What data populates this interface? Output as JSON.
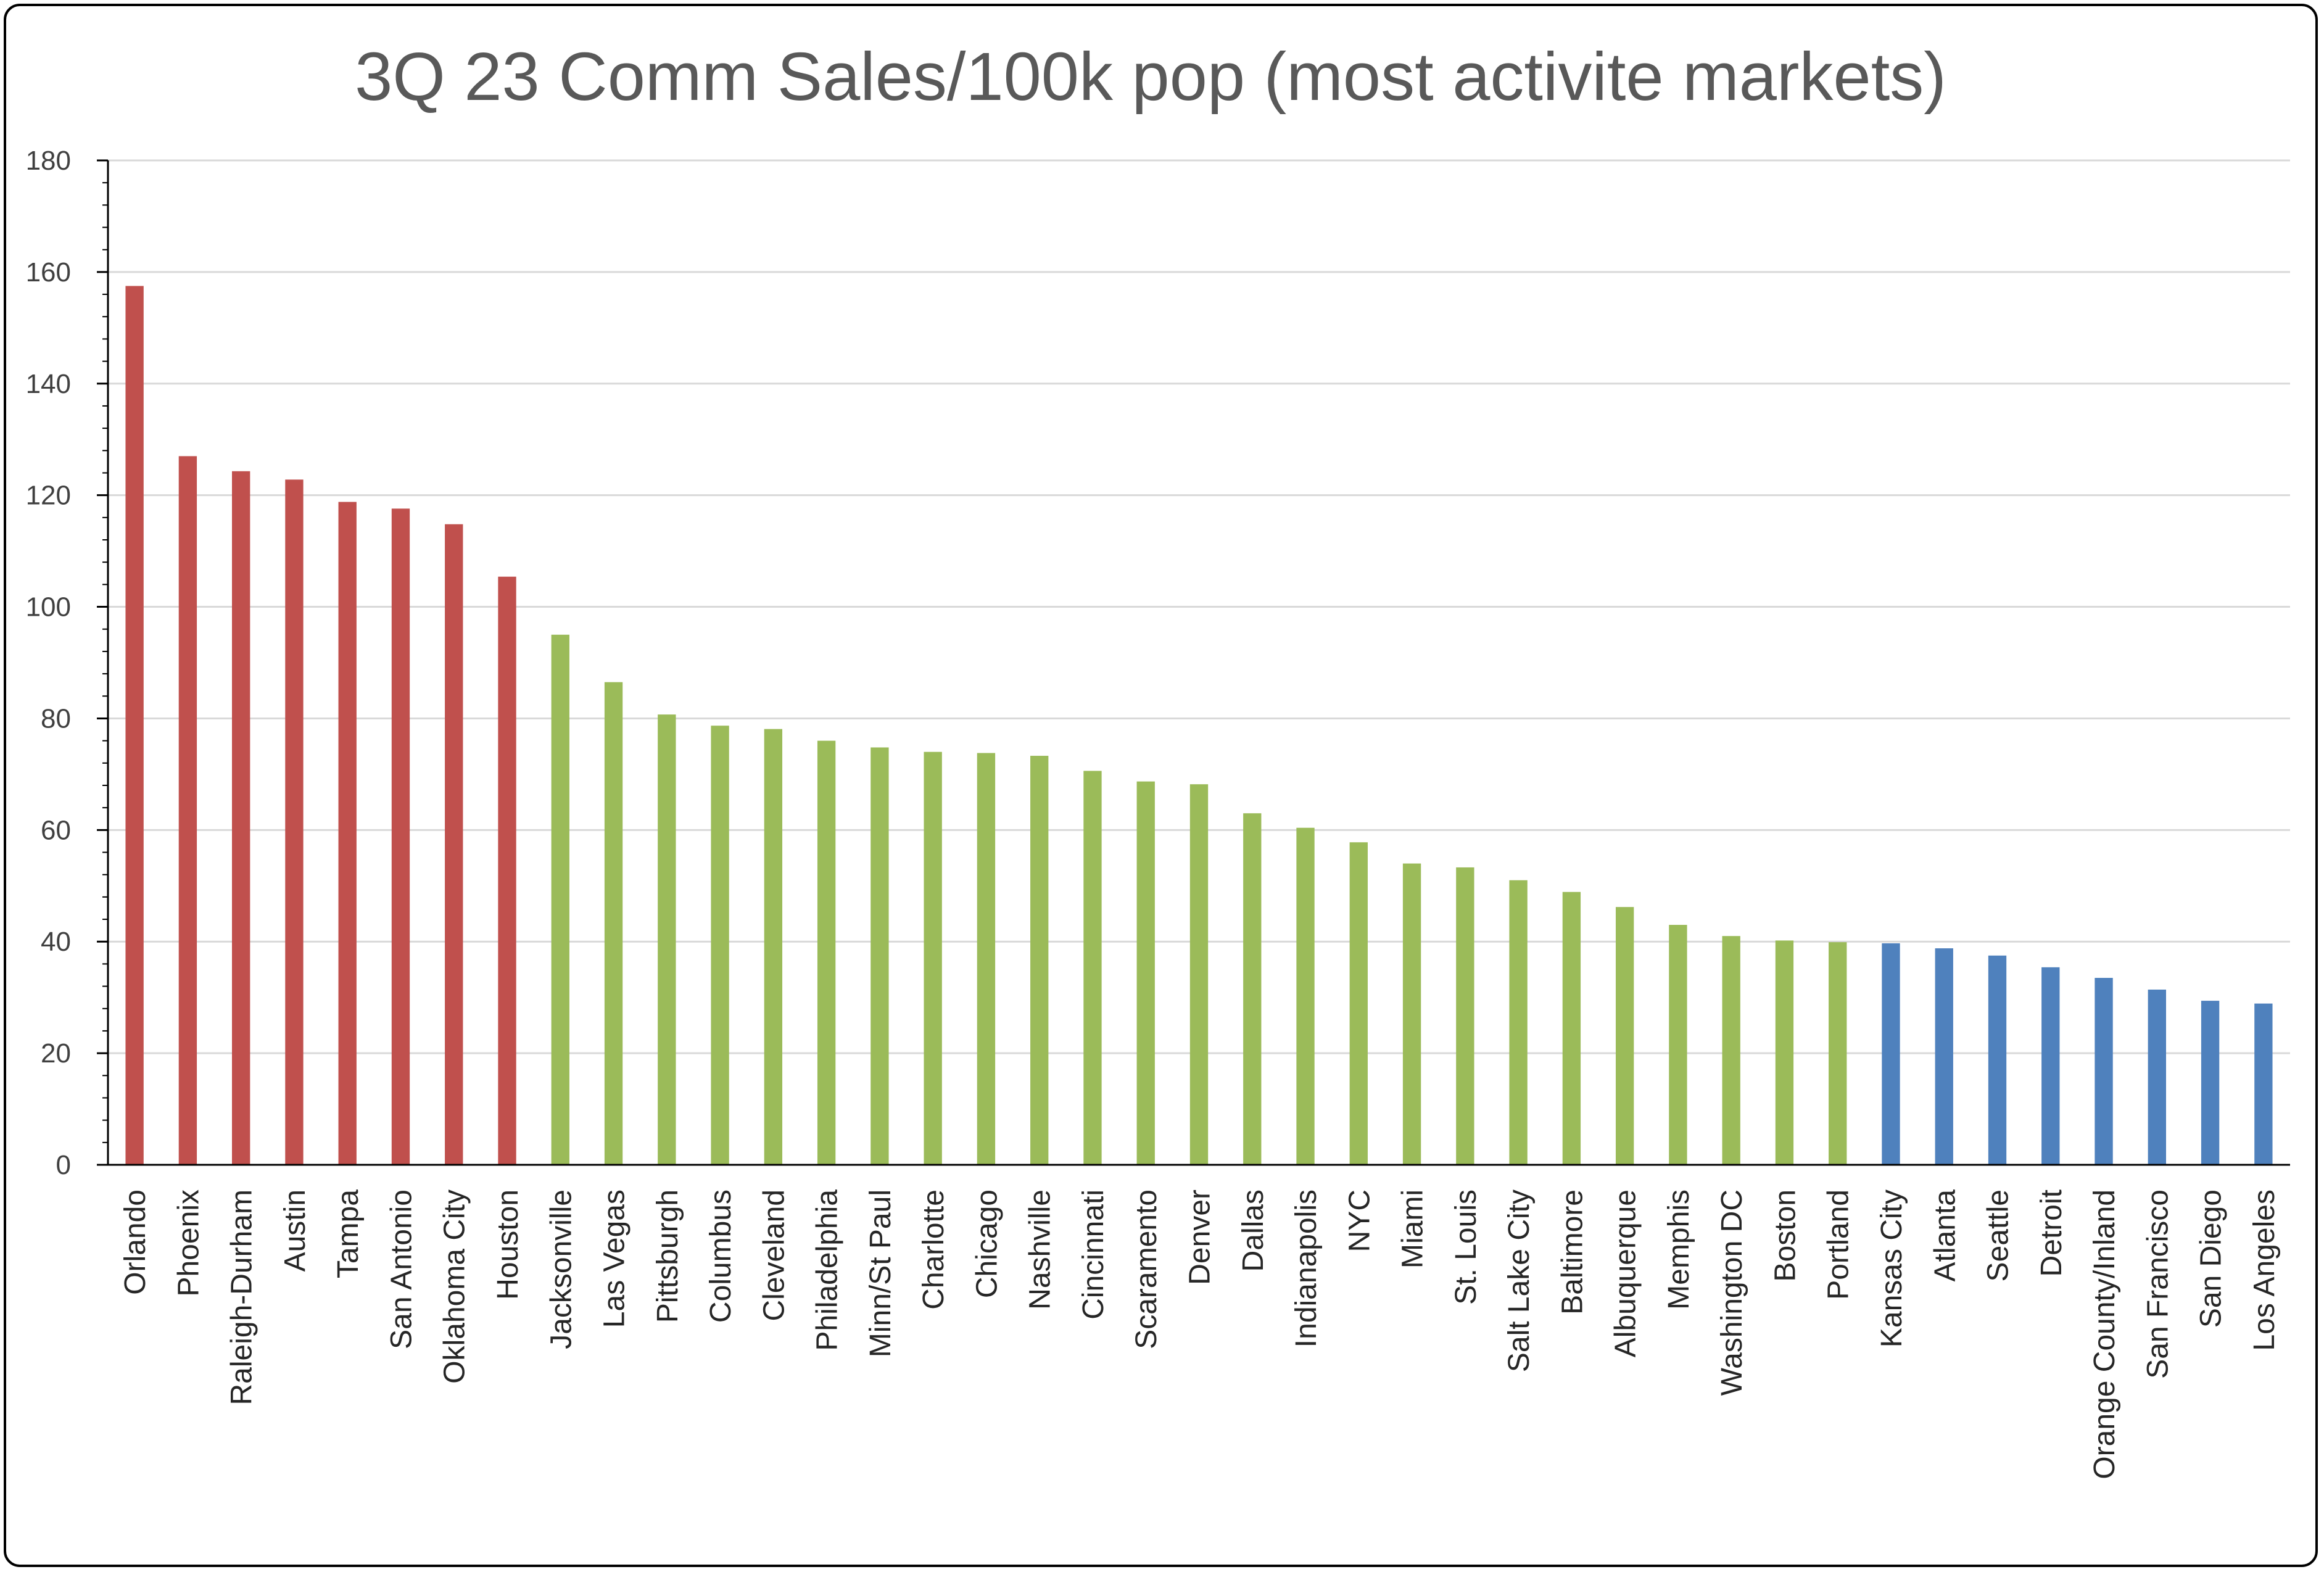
{
  "chart_data": {
    "type": "bar",
    "title": "3Q 23 Comm Sales/100k pop (most activite markets)",
    "xlabel": "",
    "ylabel": "",
    "ylim": [
      0,
      180
    ],
    "yticks": [
      0,
      20,
      40,
      60,
      80,
      100,
      120,
      140,
      160,
      180
    ],
    "grid": true,
    "legend": "none",
    "categories": [
      "Orlando",
      "Phoenix",
      "Raleigh-Durham",
      "Austin",
      "Tampa",
      "San Antonio",
      "Oklahoma City",
      "Houston",
      "Jacksonville",
      "Las Vegas",
      "Pittsburgh",
      "Columbus",
      "Cleveland",
      "Philadelphia",
      "Minn/St Paul",
      "Charlotte",
      "Chicago",
      "Nashville",
      "Cincinnati",
      "Scaramento",
      "Denver",
      "Dallas",
      "Indianapolis",
      "NYC",
      "Miami",
      "St. Louis",
      "Salt Lake City",
      "Baltimore",
      "Albuquerque",
      "Memphis",
      "Washington DC",
      "Boston",
      "Portland",
      "Kansas City",
      "Atlanta",
      "Seattle",
      "Detroit",
      "Orange County/Inland",
      "San Francisco",
      "San Diego",
      "Los Angeles"
    ],
    "values": [
      157.5,
      127,
      124.3,
      122.8,
      118.8,
      117.6,
      114.8,
      105.4,
      95,
      86.5,
      80.7,
      78.7,
      78.1,
      76,
      74.8,
      74,
      73.8,
      73.3,
      70.6,
      68.7,
      68.2,
      63,
      60.4,
      57.8,
      54,
      53.3,
      51,
      48.9,
      46.2,
      43,
      41,
      40.2,
      39.9,
      39.7,
      38.8,
      37.5,
      35.4,
      33.5,
      31.4,
      29.4,
      28.9
    ],
    "bar_colors": [
      "#C0504D",
      "#C0504D",
      "#C0504D",
      "#C0504D",
      "#C0504D",
      "#C0504D",
      "#C0504D",
      "#C0504D",
      "#9BBB59",
      "#9BBB59",
      "#9BBB59",
      "#9BBB59",
      "#9BBB59",
      "#9BBB59",
      "#9BBB59",
      "#9BBB59",
      "#9BBB59",
      "#9BBB59",
      "#9BBB59",
      "#9BBB59",
      "#9BBB59",
      "#9BBB59",
      "#9BBB59",
      "#9BBB59",
      "#9BBB59",
      "#9BBB59",
      "#9BBB59",
      "#9BBB59",
      "#9BBB59",
      "#9BBB59",
      "#9BBB59",
      "#9BBB59",
      "#9BBB59",
      "#4F81BD",
      "#4F81BD",
      "#4F81BD",
      "#4F81BD",
      "#4F81BD",
      "#4F81BD",
      "#4F81BD",
      "#4F81BD"
    ],
    "colors": {
      "high": "#C0504D",
      "mid": "#9BBB59",
      "low": "#4F81BD",
      "gridline": "#D9D9D9",
      "axis": "#000000"
    }
  }
}
